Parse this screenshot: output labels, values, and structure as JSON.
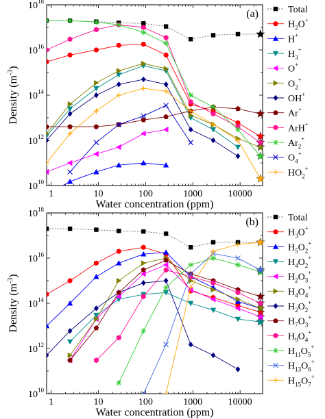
{
  "chart_data": [
    {
      "type": "line",
      "panel_label": "(a)",
      "xlabel": "Water concentration (ppm)",
      "ylabel": "Density (m",
      "ylabel_sup": "-3",
      "ylabel_close": ")",
      "xscale": "log",
      "yscale": "log",
      "xlim": [
        0.8,
        30000
      ],
      "ylim": [
        10000000000.0,
        1e+18
      ],
      "x_tick_values": [
        1,
        10,
        100,
        1000,
        10000
      ],
      "x_tick_labels": [
        "1",
        "10",
        "100",
        "1000",
        "10000"
      ],
      "y_tick_values": [
        10000000000.0,
        1000000000000.0,
        100000000000000.0,
        1e+16,
        1e+18
      ],
      "y_tick_labels": [
        {
          "base": "10",
          "exp": "10"
        },
        {
          "base": "10",
          "exp": "12"
        },
        {
          "base": "10",
          "exp": "14"
        },
        {
          "base": "10",
          "exp": "16"
        },
        {
          "base": "10",
          "exp": "18"
        }
      ],
      "legend_position": "right",
      "x": [
        0.8,
        2.5,
        9,
        27,
        90,
        270,
        900,
        2700,
        9000,
        27000
      ],
      "series": [
        {
          "name": "Total",
          "base": "Total",
          "sub": "",
          "sup": "",
          "color": "#000000",
          "marker": "square",
          "dashed": true,
          "values": [
            2e+17,
            2e+17,
            1.8e+17,
            1.6e+17,
            1.5e+17,
            1.1e+17,
            3e+16,
            4.5e+16,
            5e+16,
            5e+16
          ],
          "end_star": 5e+16
        },
        {
          "name": "H2O+",
          "base": "H",
          "sub": "2",
          "sup": "",
          "base2": "O",
          "sup2": "+",
          "color": "#ff0000",
          "marker": "circle",
          "dashed": false,
          "values": [
            3000000000000000.0,
            6000000000000000.0,
            1e+16,
            1.6e+16,
            1.8e+16,
            6000000000000000.0,
            40000000000000.0,
            20000000000000.0,
            6000000000000.0,
            1500000000000.0
          ],
          "end_star": 1500000000000.0
        },
        {
          "name": "H+",
          "base": "H",
          "sub": "",
          "sup": "+",
          "color": "#0000ff",
          "marker": "triangle-up",
          "dashed": false,
          "values": [
            4000000000.0,
            15000000000.0,
            40000000000.0,
            80000000000.0,
            100000000000.0,
            80000000000.0,
            null,
            null,
            null,
            null
          ],
          "end_star": null
        },
        {
          "name": "H3+",
          "base": "H",
          "sub": "3",
          "sup": "+",
          "color": "#008b8b",
          "marker": "triangle-down",
          "dashed": false,
          "values": [
            1600000000000.0,
            25000000000000.0,
            200000000000000.0,
            800000000000000.0,
            2000000000000000.0,
            1200000000000000.0,
            10000000000000.0,
            3000000000000.0,
            500000000000.0,
            null
          ],
          "end_star": null
        },
        {
          "name": "O+",
          "base": "O",
          "sub": "",
          "sup": "+",
          "color": "#ff00ff",
          "marker": "triangle-left",
          "dashed": false,
          "values": [
            40000000000.0,
            100000000000.0,
            250000000000.0,
            500000000000.0,
            2000000000000.0,
            3000000000000.0,
            null,
            null,
            null,
            null
          ],
          "end_star": null
        },
        {
          "name": "O2+",
          "base": "O",
          "sub": "2",
          "sup": "+",
          "color": "#808000",
          "marker": "triangle-right",
          "dashed": false,
          "values": [
            2000000000000.0,
            40000000000000.0,
            350000000000000.0,
            1200000000000000.0,
            2500000000000000.0,
            1500000000000000.0,
            13000000000000.0,
            5000000000000.0,
            1200000000000.0,
            500000000000.0
          ],
          "end_star": 500000000000.0
        },
        {
          "name": "OH+",
          "base": "OH",
          "sub": "",
          "sup": "+",
          "color": "#000080",
          "marker": "diamond",
          "dashed": false,
          "values": [
            1000000000000.0,
            15000000000000.0,
            100000000000000.0,
            300000000000000.0,
            500000000000000.0,
            300000000000000.0,
            3000000000000.0,
            1000000000000.0,
            200000000000.0,
            null
          ],
          "end_star": null
        },
        {
          "name": "Ar+",
          "base": "Ar",
          "sub": "",
          "sup": "+",
          "color": "#800000",
          "marker": "pentagon",
          "dashed": false,
          "values": [
            4000000000000.0,
            4000000000000.0,
            4000000000000.0,
            5000000000000.0,
            8000000000000.0,
            11000000000000.0,
            20000000000000.0,
            30000000000000.0,
            25000000000000.0,
            15000000000000.0
          ],
          "end_star": 15000000000000.0
        },
        {
          "name": "ArH+",
          "base": "ArH",
          "sub": "",
          "sup": "+",
          "color": "#ff1493",
          "marker": "hexagon",
          "dashed": false,
          "values": [
            1e+16,
            3e+16,
            8e+16,
            1.3e+17,
            1e+17,
            3.5e+16,
            50000000000000.0,
            15000000000000.0,
            4000000000000.0,
            800000000000.0
          ],
          "end_star": 800000000000.0
        },
        {
          "name": "Ar2+",
          "base": "Ar",
          "sub": "2",
          "sup": "+",
          "color": "#32cd32",
          "marker": "asterisk",
          "dashed": false,
          "values": [
            2e+17,
            2e+17,
            1.7e+17,
            1.3e+17,
            6e+16,
            2e+16,
            100000000000000.0,
            30000000000000.0,
            3000000000000.0,
            200000000000.0
          ],
          "end_star": 200000000000.0
        },
        {
          "name": "O4+",
          "base": "O",
          "sub": "4",
          "sup": "+",
          "color": "#0000cd",
          "marker": "x",
          "dashed": false,
          "values": [
            null,
            40000000000.0,
            800000000000.0,
            5000000000000.0,
            12000000000000.0,
            35000000000000.0,
            800000000000.0,
            null,
            null,
            null
          ],
          "end_star": null
        },
        {
          "name": "HO2+",
          "base": "HO",
          "sub": "2",
          "sup": "+",
          "color": "#ffa500",
          "marker": "plus",
          "dashed": false,
          "values": [
            100000000000.0,
            2000000000000.0,
            20000000000000.0,
            100000000000000.0,
            200000000000000.0,
            150000000000000.0,
            20000000000000.0,
            5000000000000.0,
            1000000000000.0,
            20000000000.0
          ],
          "end_star": 20000000000.0
        }
      ]
    },
    {
      "type": "line",
      "panel_label": "(b)",
      "xlabel": "Water concentration (ppm)",
      "ylabel": "Density (m",
      "ylabel_sup": "-3",
      "ylabel_close": ")",
      "xscale": "log",
      "yscale": "log",
      "xlim": [
        0.8,
        30000
      ],
      "ylim": [
        10000000000.0,
        1e+18
      ],
      "x_tick_values": [
        1,
        10,
        100,
        1000,
        10000
      ],
      "x_tick_labels": [
        "1",
        "10",
        "100",
        "1000",
        "10000"
      ],
      "y_tick_values": [
        10000000000.0,
        1000000000000.0,
        100000000000000.0,
        1e+16,
        1e+18
      ],
      "y_tick_labels": [
        {
          "base": "10",
          "exp": "10"
        },
        {
          "base": "10",
          "exp": "12"
        },
        {
          "base": "10",
          "exp": "14"
        },
        {
          "base": "10",
          "exp": "16"
        },
        {
          "base": "10",
          "exp": "18"
        }
      ],
      "legend_position": "right",
      "x": [
        0.8,
        2.5,
        9,
        27,
        90,
        270,
        900,
        2700,
        9000,
        27000
      ],
      "series": [
        {
          "name": "Total",
          "base": "Total",
          "sub": "",
          "sup": "",
          "color": "#000000",
          "marker": "square",
          "dashed": true,
          "values": [
            2e+17,
            2e+17,
            1.8e+17,
            1.6e+17,
            1.5e+17,
            1.2e+17,
            3e+16,
            5e+16,
            5e+16,
            5e+16
          ],
          "end_star": 5e+16
        },
        {
          "name": "H3O+",
          "base": "H",
          "sub": "3",
          "sup": "",
          "base2": "O",
          "sup2": "+",
          "color": "#ff0000",
          "marker": "circle",
          "dashed": false,
          "values": [
            250000000000000.0,
            1000000000000000.0,
            6000000000000000.0,
            2e+16,
            3e+16,
            1.5e+16,
            350000000000000.0,
            180000000000000.0,
            80000000000000.0,
            40000000000000.0
          ],
          "end_star": 40000000000000.0
        },
        {
          "name": "H5O2+",
          "base": "H",
          "sub": "5",
          "sup": "",
          "base2": "O",
          "sub2": "2",
          "sup2": "+",
          "color": "#0000ff",
          "marker": "triangle-up",
          "dashed": false,
          "values": [
            10000000000000.0,
            100000000000000.0,
            1500000000000000.0,
            6000000000000000.0,
            1.5e+16,
            1.8e+16,
            1500000000000000.0,
            500000000000000.0,
            120000000000000.0,
            60000000000000.0
          ],
          "end_star": 60000000000000.0
        },
        {
          "name": "H4O2+",
          "base": "H",
          "sub": "4",
          "sup": "",
          "base2": "O",
          "sub2": "2",
          "sup2": "+",
          "color": "#008b8b",
          "marker": "triangle-down",
          "dashed": false,
          "values": [
            null,
            2000000000000.0,
            30000000000000.0,
            150000000000000.0,
            250000000000000.0,
            300000000000000.0,
            100000000000000.0,
            50000000000000.0,
            20000000000000.0,
            15000000000000.0
          ],
          "end_star": 15000000000000.0
        },
        {
          "name": "H2O3+",
          "base": "H",
          "sub": "2",
          "sup": "",
          "base2": "O",
          "sub2": "3",
          "sup2": "+",
          "color": "#ff00ff",
          "marker": "triangle-left",
          "dashed": false,
          "values": [
            null,
            300000000000.0,
            20000000000000.0,
            200000000000000.0,
            2000000000000000.0,
            5000000000000000.0,
            400000000000000.0,
            150000000000000.0,
            60000000000000.0,
            25000000000000.0
          ],
          "end_star": 25000000000000.0
        },
        {
          "name": "H4O4+",
          "base": "H",
          "sub": "4",
          "sup": "",
          "base2": "O",
          "sub2": "4",
          "sup2": "+",
          "color": "#808000",
          "marker": "triangle-right",
          "dashed": false,
          "values": [
            null,
            500000000000.0,
            20000000000000.0,
            1000000000000000.0,
            6000000000000000.0,
            1e+16,
            1000000000000000.0,
            400000000000000.0,
            150000000000000.0,
            60000000000000.0
          ],
          "end_star": 60000000000000.0
        },
        {
          "name": "H2O2+",
          "base": "H",
          "sub": "2",
          "sup": "",
          "base2": "O",
          "sub2": "2",
          "sup2": "+",
          "color": "#000080",
          "marker": "diamond",
          "dashed": false,
          "values": [
            500000000000.0,
            6000000000000.0,
            60000000000000.0,
            300000000000000.0,
            800000000000000.0,
            1000000000000000.0,
            1500000000000.0,
            500000000000.0,
            120000000000.0,
            null
          ],
          "end_star": null
        },
        {
          "name": "H7O3+",
          "base": "H",
          "sub": "7",
          "sup": "",
          "base2": "O",
          "sub2": "3",
          "sup2": "+",
          "color": "#800000",
          "marker": "pentagon",
          "dashed": false,
          "values": [
            null,
            300000000000.0,
            8000000000000.0,
            300000000000000.0,
            3000000000000000.0,
            8000000000000000.0,
            2000000000000000.0,
            1000000000000000.0,
            400000000000000.0,
            200000000000000.0
          ],
          "end_star": 200000000000000.0
        },
        {
          "name": "H9O4+",
          "base": "H",
          "sub": "9",
          "sup": "",
          "base2": "O",
          "sub2": "4",
          "sup2": "+",
          "color": "#ff1493",
          "marker": "hexagon",
          "dashed": false,
          "values": [
            null,
            null,
            300000000000.0,
            3000000000000.0,
            200000000000000.0,
            3000000000000000.0,
            1500000000000000.0,
            800000000000000.0,
            300000000000000.0,
            100000000000000.0
          ],
          "end_star": 100000000000000.0
        },
        {
          "name": "H11O5+",
          "base": "H",
          "sub": "11",
          "sup": "",
          "base2": "O",
          "sub2": "5",
          "sup2": "+",
          "color": "#32cd32",
          "marker": "asterisk",
          "dashed": false,
          "values": [
            null,
            null,
            null,
            30000000000.0,
            6000000000000.0,
            500000000000000.0,
            5000000000000000.0,
            1e+16,
            5000000000000000.0,
            2500000000000000.0
          ],
          "end_star": 2500000000000000.0
        },
        {
          "name": "H13O6+",
          "base": "H",
          "sub": "13",
          "sup": "",
          "base2": "O",
          "sub2": "6",
          "sup2": "+",
          "color": "#4169e1",
          "marker": "x",
          "dashed": false,
          "values": [
            null,
            null,
            null,
            null,
            10000000000.0,
            1500000000000.0,
            2000000000000000.0,
            1.6e+16,
            1e+16,
            3000000000000000.0
          ],
          "end_star": 3000000000000000.0
        },
        {
          "name": "H15O7+",
          "base": "H",
          "sub": "15",
          "sup": "",
          "base2": "O",
          "sub2": "7",
          "sup2": "+",
          "color": "#ffa500",
          "marker": "plus",
          "dashed": false,
          "values": [
            null,
            null,
            null,
            null,
            null,
            10000000000.0,
            500000000000000.0,
            2e+16,
            4e+16,
            5e+16
          ],
          "end_star": 5e+16
        }
      ]
    }
  ]
}
